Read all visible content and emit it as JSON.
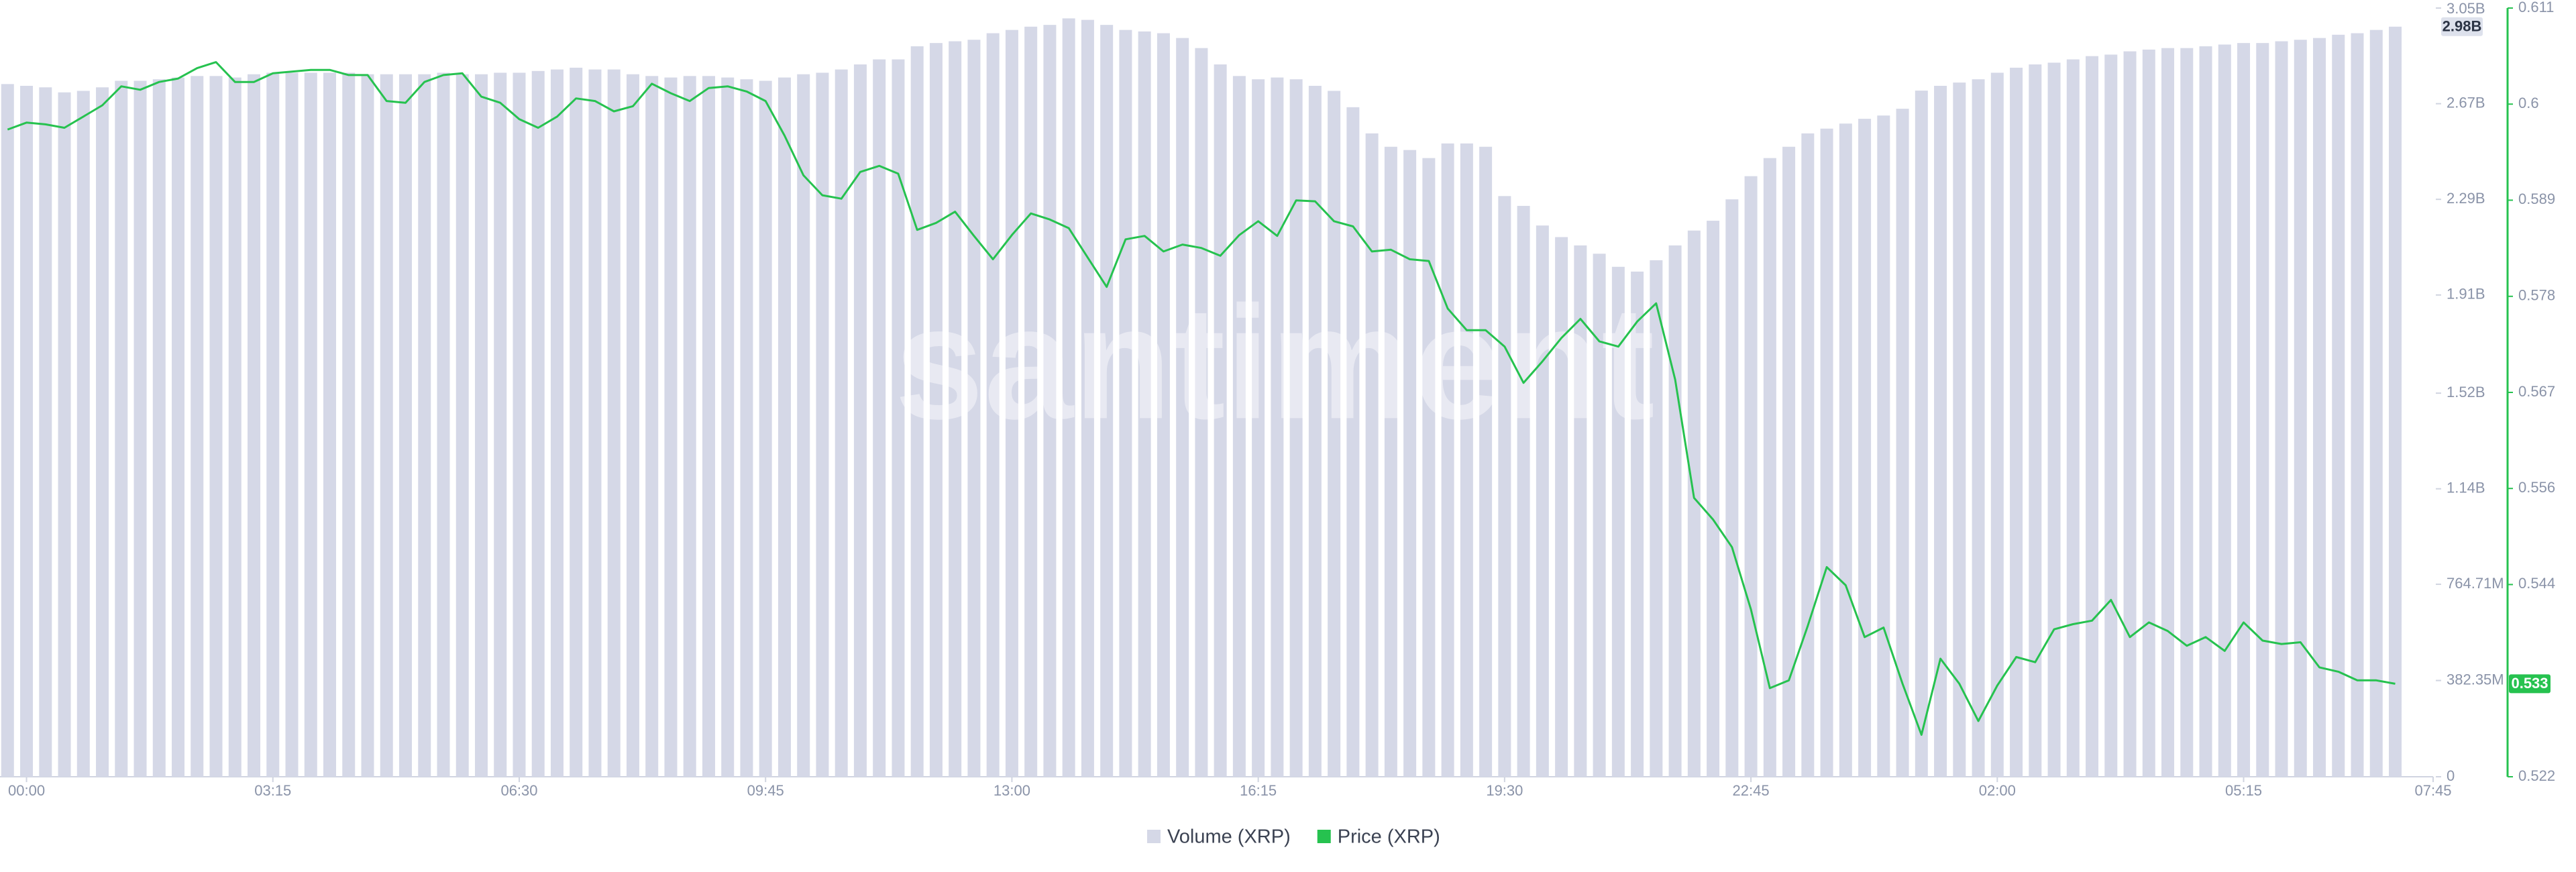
{
  "chart_data": {
    "type": "combo",
    "watermark": "santiment",
    "x": [
      -0.25,
      0,
      0.25,
      0.5,
      0.75,
      1,
      1.25,
      1.5,
      1.75,
      2,
      2.25,
      2.5,
      2.75,
      3,
      3.25,
      3.5,
      3.75,
      4,
      4.25,
      4.5,
      4.75,
      5,
      5.25,
      5.5,
      5.75,
      6,
      6.25,
      6.5,
      6.75,
      7,
      7.25,
      7.5,
      7.75,
      8,
      8.25,
      8.5,
      8.75,
      9,
      9.25,
      9.5,
      9.75,
      10,
      10.25,
      10.5,
      10.75,
      11,
      11.25,
      11.5,
      11.75,
      12,
      12.25,
      12.5,
      12.75,
      13,
      13.25,
      13.5,
      13.75,
      14,
      14.25,
      14.5,
      14.75,
      15,
      15.25,
      15.5,
      15.75,
      16,
      16.25,
      16.5,
      16.75,
      17,
      17.25,
      17.5,
      17.75,
      18,
      18.25,
      18.5,
      18.75,
      19,
      19.25,
      19.5,
      19.75,
      20,
      20.25,
      20.5,
      20.75,
      21,
      21.25,
      21.5,
      21.75,
      22,
      22.25,
      22.5,
      22.75,
      23,
      23.25,
      23.5,
      23.75,
      24,
      24.25,
      24.5,
      24.75,
      25,
      25.25,
      25.5,
      25.75,
      26,
      26.25,
      26.5,
      26.75,
      27,
      27.25,
      27.5,
      27.75,
      28,
      28.25,
      28.5,
      28.75,
      29,
      29.25,
      29.5,
      29.75,
      30,
      30.25,
      30.5,
      30.75,
      31,
      31.25
    ],
    "xlim": [
      -0.35,
      31.75
    ],
    "xticks": [
      {
        "value": 0,
        "label": "00:00"
      },
      {
        "value": 3.25,
        "label": "03:15"
      },
      {
        "value": 6.5,
        "label": "06:30"
      },
      {
        "value": 9.75,
        "label": "09:45"
      },
      {
        "value": 13,
        "label": "13:00"
      },
      {
        "value": 16.25,
        "label": "16:15"
      },
      {
        "value": 19.5,
        "label": "19:30"
      },
      {
        "value": 22.75,
        "label": "22:45"
      },
      {
        "value": 26,
        "label": "02:00"
      },
      {
        "value": 29.25,
        "label": "05:15"
      },
      {
        "value": 31.75,
        "label": "07:45"
      }
    ],
    "ylim": [
      0,
      3054
    ],
    "yticks": [
      0,
      {
        "value": 382.35,
        "label": "382.35M"
      },
      {
        "value": 764.71,
        "label": "764.71M"
      },
      {
        "value": 1144,
        "label": "1.14B"
      },
      {
        "value": 1524,
        "label": "1.52B"
      },
      {
        "value": 1914,
        "label": "1.91B"
      },
      {
        "value": 2294,
        "label": "2.29B"
      },
      {
        "value": 2674,
        "label": "2.67B"
      },
      {
        "value": 3054,
        "label": "3.05B"
      }
    ],
    "y2lim": [
      0.52225,
      0.61115
    ],
    "y2ticks": [
      {
        "value": 0.52225,
        "label": "0.522"
      },
      {
        "value": 0.54448,
        "label": "0.544"
      },
      {
        "value": 0.55559,
        "label": "0.556"
      },
      {
        "value": 0.5667,
        "label": "0.567"
      },
      {
        "value": 0.57781,
        "label": "0.578"
      },
      {
        "value": 0.58893,
        "label": "0.589"
      },
      {
        "value": 0.60004,
        "label": "0.6"
      },
      {
        "value": 0.61115,
        "label": "0.611"
      }
    ],
    "series": [
      {
        "name": "Volume (XRP)",
        "type": "bar",
        "color": "#d5d8e7",
        "last_label": "2.98B",
        "values": [
          2752,
          2745,
          2739,
          2719,
          2725,
          2739,
          2765,
          2765,
          2771,
          2778,
          2784,
          2784,
          2778,
          2791,
          2797,
          2797,
          2797,
          2797,
          2797,
          2791,
          2791,
          2791,
          2791,
          2797,
          2791,
          2791,
          2797,
          2797,
          2804,
          2810,
          2817,
          2810,
          2810,
          2791,
          2784,
          2778,
          2784,
          2784,
          2778,
          2771,
          2765,
          2778,
          2791,
          2797,
          2810,
          2830,
          2850,
          2850,
          2902,
          2915,
          2922,
          2928,
          2954,
          2967,
          2980,
          2987,
          3013,
          3007,
          2987,
          2967,
          2961,
          2954,
          2935,
          2895,
          2830,
          2784,
          2771,
          2778,
          2771,
          2745,
          2725,
          2660,
          2556,
          2503,
          2490,
          2458,
          2516,
          2516,
          2503,
          2307,
          2268,
          2190,
          2144,
          2111,
          2078,
          2026,
          2007,
          2052,
          2111,
          2170,
          2209,
          2294,
          2386,
          2458,
          2503,
          2556,
          2575,
          2595,
          2614,
          2627,
          2654,
          2726,
          2745,
          2758,
          2771,
          2797,
          2817,
          2830,
          2837,
          2850,
          2863,
          2869,
          2882,
          2889,
          2895,
          2895,
          2902,
          2909,
          2915,
          2915,
          2922,
          2928,
          2935,
          2948,
          2954,
          2967,
          2980
        ]
      },
      {
        "name": "Price (XRP)",
        "type": "line",
        "axis": "y2",
        "color": "#26c24f",
        "last_label": "0.533",
        "values": [
          0.5971,
          0.5979,
          0.5977,
          0.5973,
          0.5986,
          0.5999,
          0.6021,
          0.6017,
          0.6026,
          0.603,
          0.6042,
          0.6049,
          0.6026,
          0.6026,
          0.6036,
          0.6038,
          0.604,
          0.604,
          0.6034,
          0.6034,
          0.6004,
          0.6002,
          0.6026,
          0.6034,
          0.6036,
          0.6009,
          0.6002,
          0.5983,
          0.5973,
          0.5986,
          0.6007,
          0.6004,
          0.5992,
          0.5998,
          0.6024,
          0.6013,
          0.6004,
          0.6019,
          0.6021,
          0.6015,
          0.6004,
          0.5964,
          0.5918,
          0.5895,
          0.5891,
          0.5922,
          0.5929,
          0.592,
          0.5855,
          0.5863,
          0.5876,
          0.5848,
          0.5821,
          0.5849,
          0.5874,
          0.5867,
          0.5857,
          0.5823,
          0.5789,
          0.5844,
          0.5848,
          0.583,
          0.5838,
          0.5834,
          0.5825,
          0.5849,
          0.5865,
          0.5848,
          0.5889,
          0.5888,
          0.5865,
          0.5859,
          0.583,
          0.5832,
          0.5821,
          0.5819,
          0.5764,
          0.5739,
          0.5739,
          0.572,
          0.5678,
          0.5703,
          0.573,
          0.5752,
          0.5726,
          0.572,
          0.5749,
          0.577,
          0.5682,
          0.5545,
          0.552,
          0.5488,
          0.5416,
          0.5325,
          0.5334,
          0.5397,
          0.5465,
          0.5444,
          0.5384,
          0.5395,
          0.533,
          0.5271,
          0.5359,
          0.533,
          0.5287,
          0.5328,
          0.5361,
          0.5355,
          0.5393,
          0.5399,
          0.5403,
          0.5427,
          0.5384,
          0.5401,
          0.5391,
          0.5374,
          0.5384,
          0.5368,
          0.5401,
          0.538,
          0.5376,
          0.5378,
          0.5349,
          0.5344,
          0.5334,
          0.5334,
          0.533
        ]
      }
    ]
  }
}
